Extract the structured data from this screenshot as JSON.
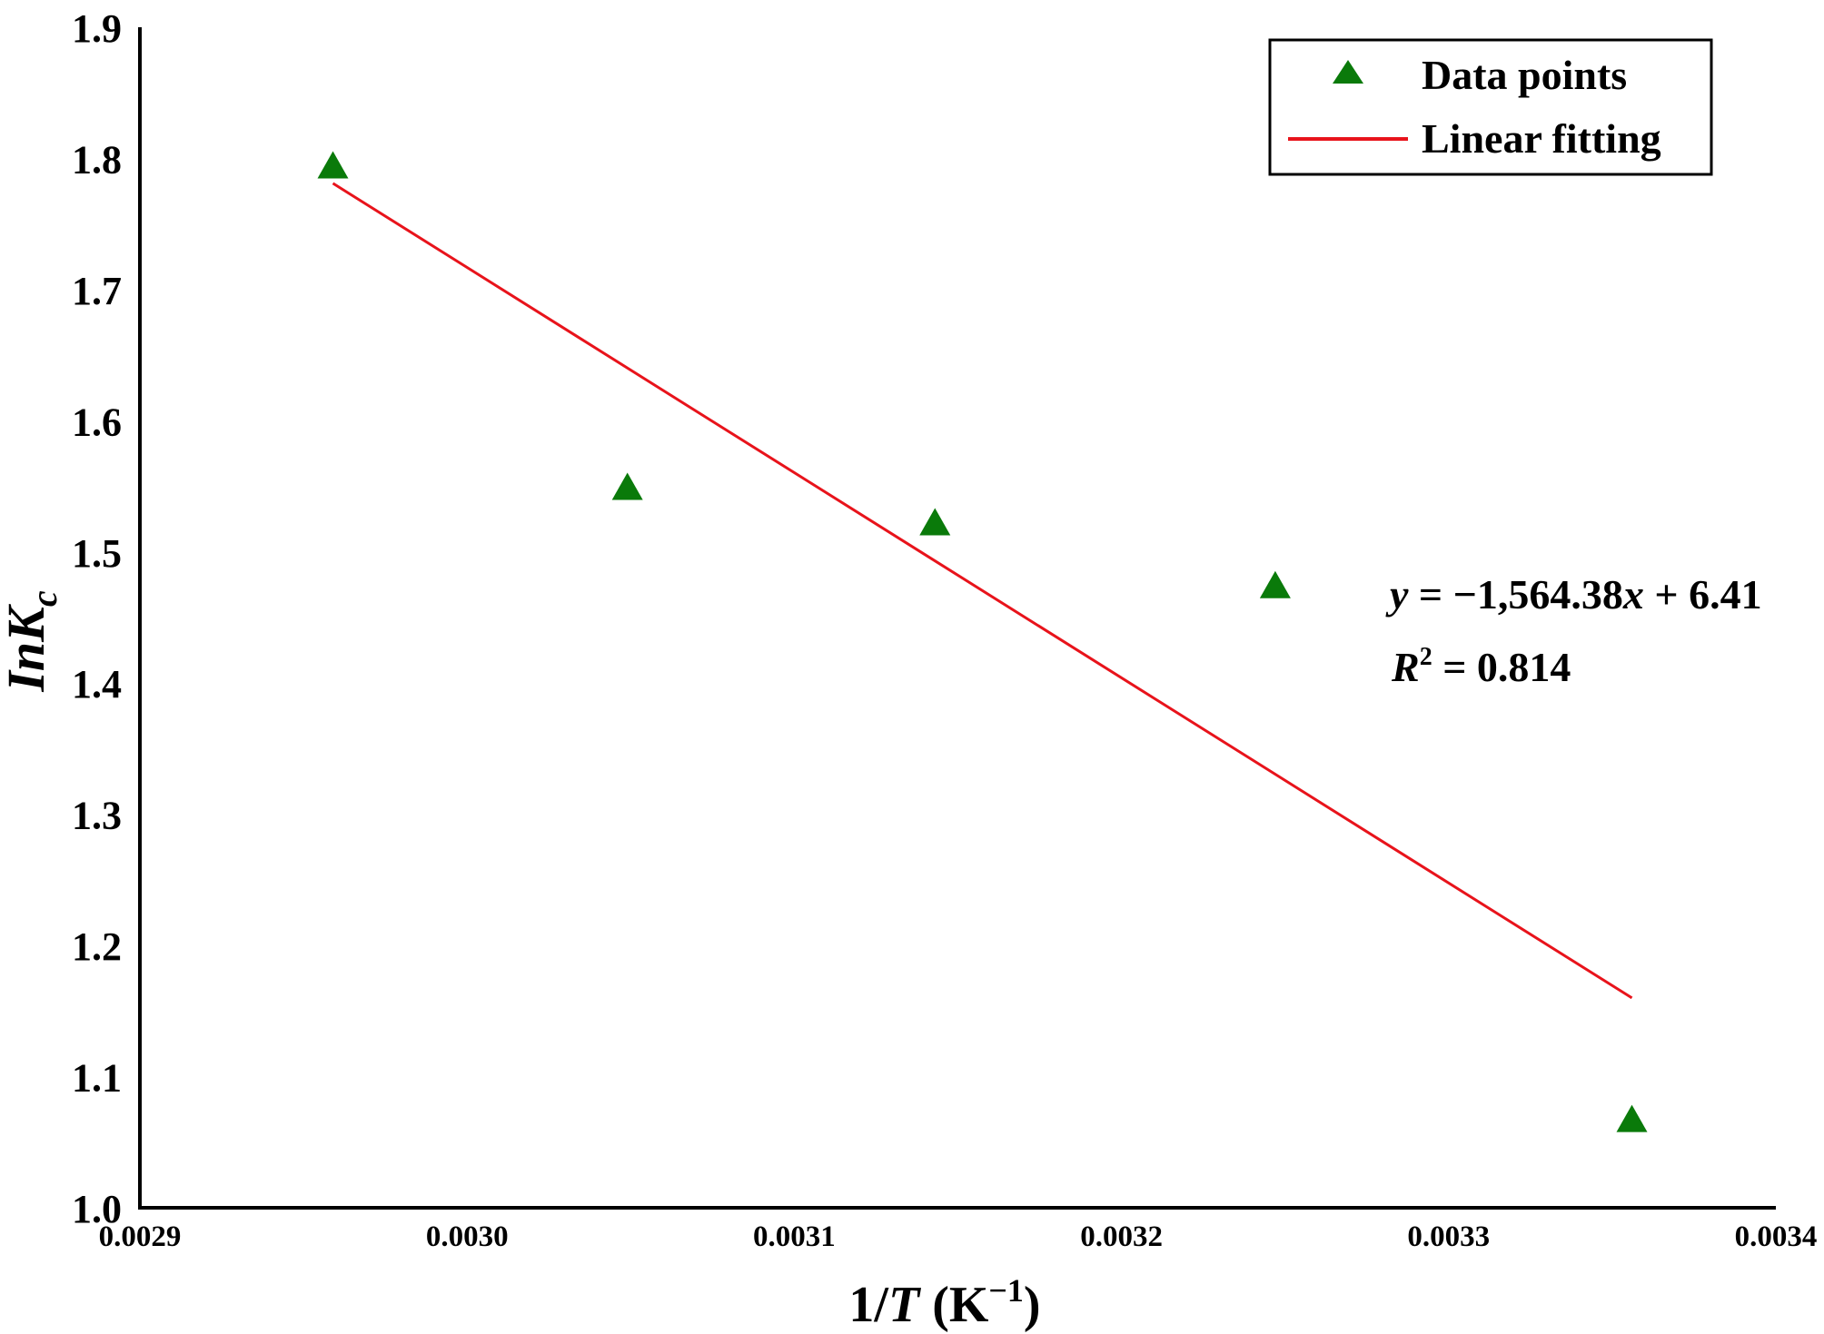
{
  "chart_data": {
    "type": "scatter",
    "title": "",
    "xlabel": {
      "prefix": "1/",
      "var": "T",
      "unit_open": " (K",
      "unit_sup": "−1",
      "unit_close": ")"
    },
    "ylabel": {
      "main": "InK",
      "sub": "c"
    },
    "xlim": [
      0.0029,
      0.0034
    ],
    "ylim": [
      1.0,
      1.9
    ],
    "x_ticks": [
      "0.0029",
      "0.0030",
      "0.0031",
      "0.0032",
      "0.0033",
      "0.0034"
    ],
    "y_ticks": [
      "1.0",
      "1.1",
      "1.2",
      "1.3",
      "1.4",
      "1.5",
      "1.6",
      "1.7",
      "1.8",
      "1.9"
    ],
    "grid": false,
    "legend_position": "top-right",
    "series": [
      {
        "name": "Data points",
        "marker": "triangle",
        "color": "#0a7a0a",
        "x": [
          0.002959,
          0.003049,
          0.003143,
          0.003247,
          0.003356
        ],
        "y": [
          1.793,
          1.548,
          1.521,
          1.473,
          1.066
        ]
      },
      {
        "name": "Linear fitting",
        "kind": "line",
        "color": "#e8131b",
        "x": [
          0.002959,
          0.003356
        ],
        "y": [
          1.781,
          1.16
        ]
      }
    ],
    "annotations": {
      "equation": {
        "y": "y",
        "mid": " = −1,564.38",
        "x": "x",
        "tail": " + 6.41"
      },
      "r2": {
        "R": "R",
        "sup": "2",
        "tail": " = 0.814"
      }
    }
  },
  "colors": {
    "axis": "#000000",
    "points": "#0a7a0a",
    "fit": "#e8131b"
  }
}
